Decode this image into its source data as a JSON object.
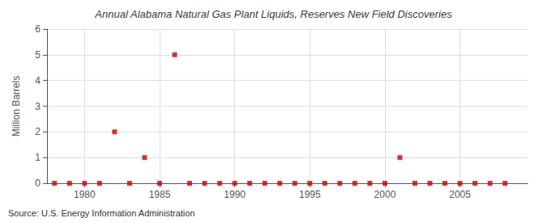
{
  "chart_data": {
    "type": "scatter",
    "title": "Annual Alabama Natural Gas Plant Liquids, Reserves New Field Discoveries",
    "ylabel": "Million Barrels",
    "annotation": "Source: U.S. Energy Information Administration",
    "x": [
      1978,
      1979,
      1980,
      1981,
      1982,
      1983,
      1984,
      1985,
      1986,
      1987,
      1988,
      1989,
      1990,
      1991,
      1992,
      1993,
      1994,
      1995,
      1996,
      1997,
      1998,
      1999,
      2000,
      2001,
      2002,
      2003,
      2004,
      2005,
      2006,
      2007,
      2008
    ],
    "values": [
      0,
      0,
      0,
      0,
      2.0,
      0,
      1.0,
      0,
      5.0,
      0,
      0,
      0,
      0,
      0,
      0,
      0,
      0,
      0,
      0,
      0,
      0,
      0,
      0,
      1.0,
      0,
      0,
      0,
      0,
      0,
      0,
      0
    ],
    "color": "#cc0000",
    "marker": "square",
    "xlim": [
      1977.5,
      2009.5
    ],
    "ylim": [
      0,
      6
    ],
    "xticks": [
      1980,
      1985,
      1990,
      1995,
      2000,
      2005
    ],
    "yticks": [
      0,
      1,
      2,
      3,
      4,
      5,
      6
    ],
    "grid": true
  }
}
